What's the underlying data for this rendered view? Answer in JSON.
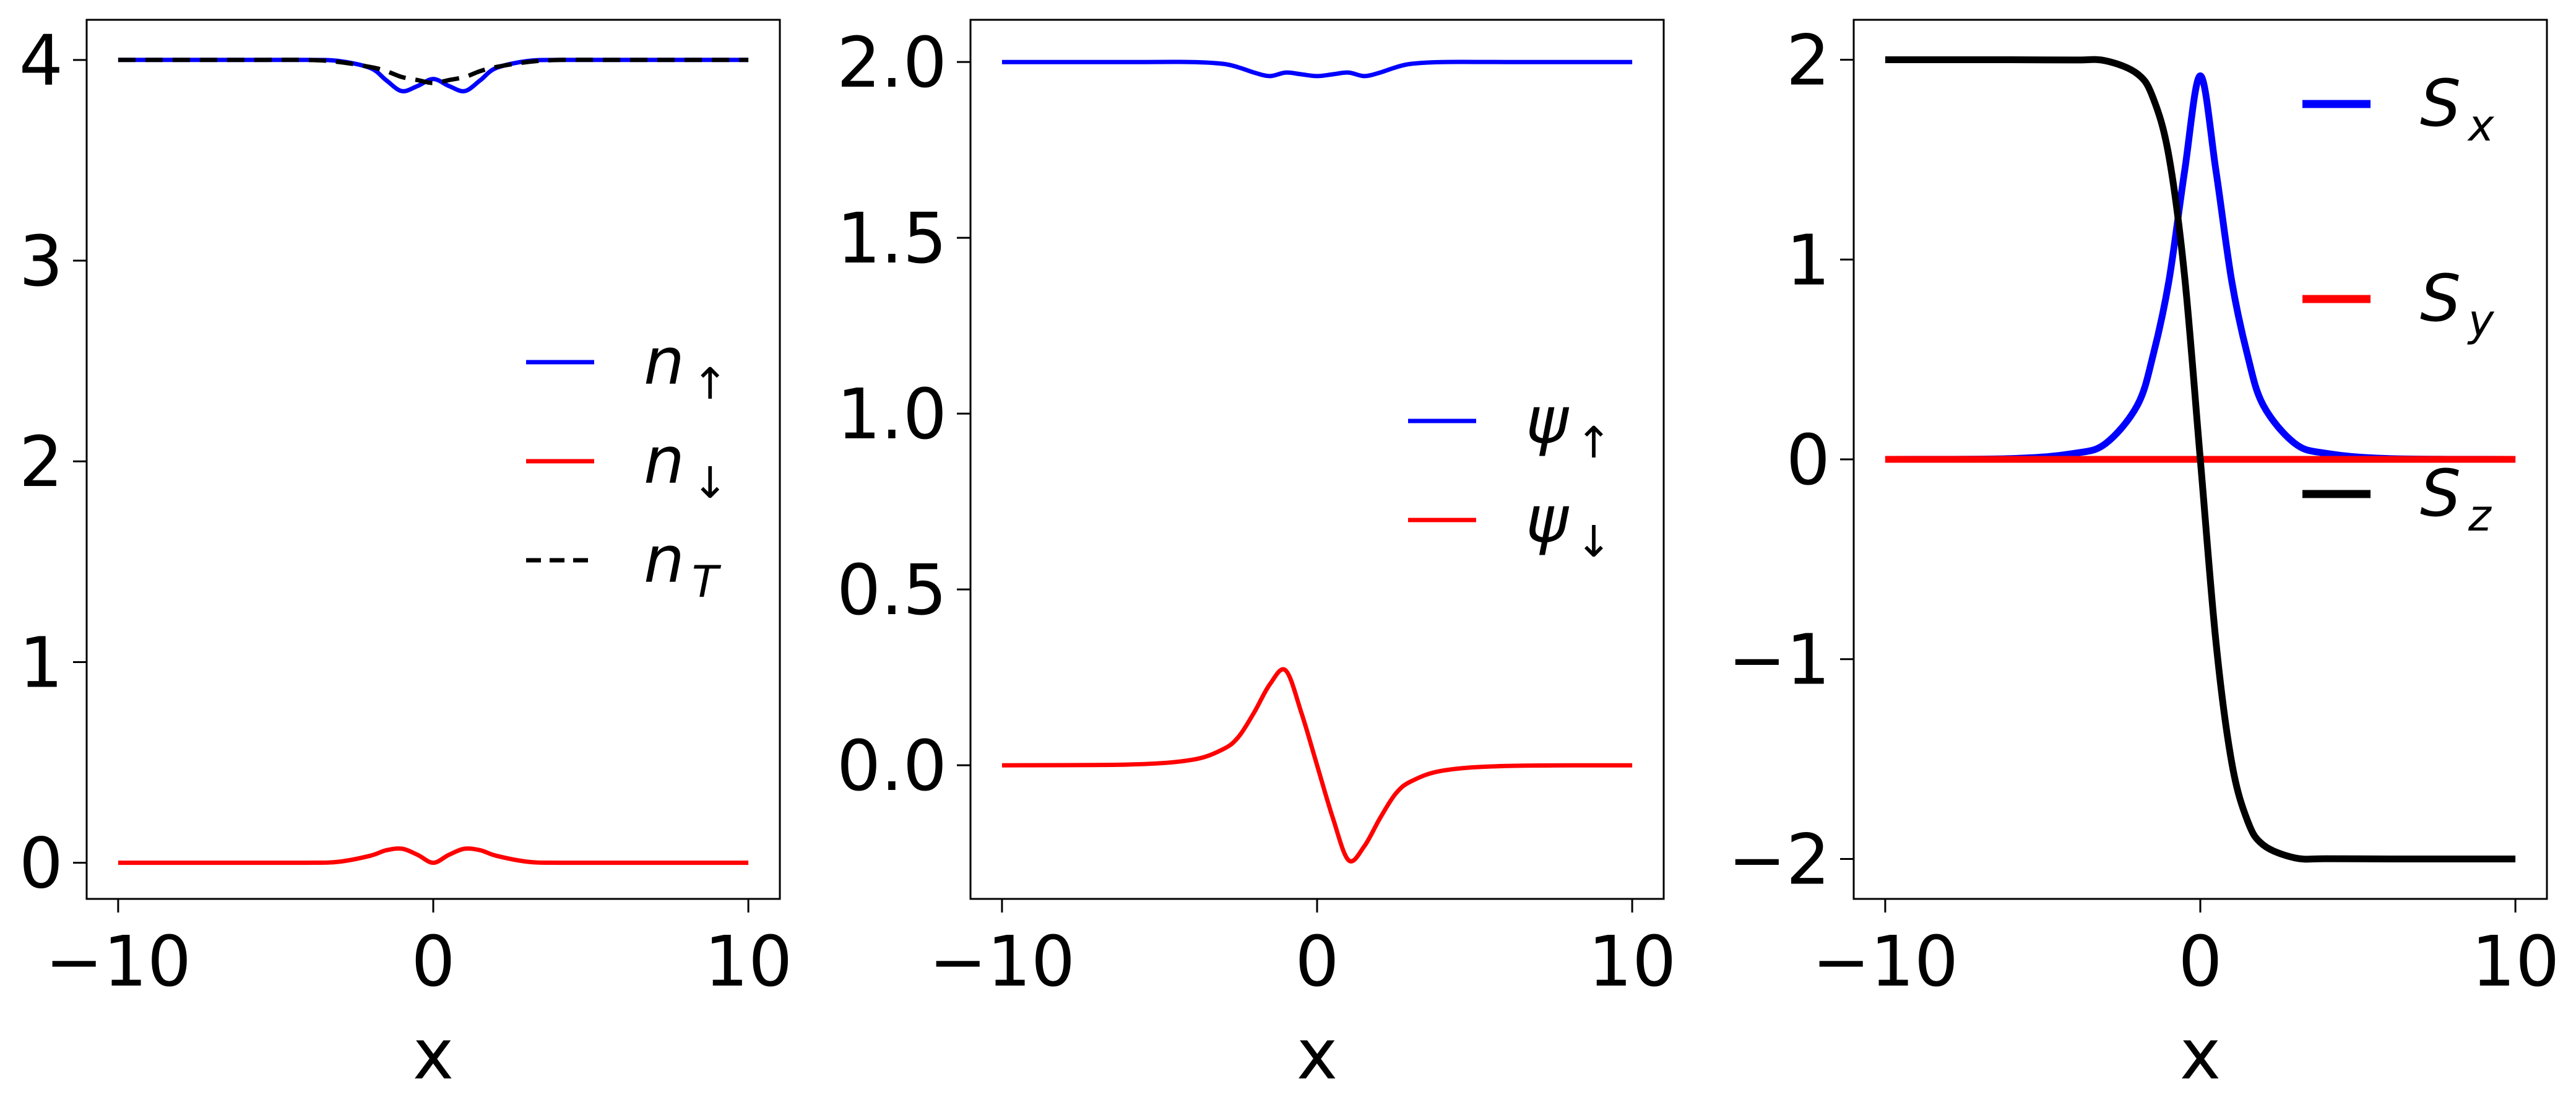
{
  "chart_data": [
    {
      "type": "line",
      "title": "",
      "xlabel": "x",
      "ylabel": "",
      "xlim": [
        -11,
        11
      ],
      "ylim": [
        -0.18,
        4.2
      ],
      "xticks": [
        -10,
        0,
        10
      ],
      "yticks": [
        0,
        1,
        2,
        3,
        4
      ],
      "xtick_labels": [
        "−10",
        "0",
        "10"
      ],
      "ytick_labels": [
        "0",
        "1",
        "2",
        "3",
        "4"
      ],
      "grid": false,
      "legend_position": "center-right",
      "x": [
        -10,
        -8,
        -6,
        -4,
        -3,
        -2,
        -1.5,
        -1,
        -0.5,
        0,
        0.5,
        1,
        1.5,
        2,
        3,
        4,
        6,
        8,
        10
      ],
      "series": [
        {
          "name": "n↑",
          "base": "n",
          "sub": "↑",
          "color": "#0000ff",
          "dash": "",
          "values": [
            4.0,
            4.0,
            4.0,
            4.0,
            3.995,
            3.96,
            3.9,
            3.845,
            3.87,
            3.905,
            3.87,
            3.845,
            3.9,
            3.96,
            3.995,
            4.0,
            4.0,
            4.0,
            4.0
          ]
        },
        {
          "name": "n↓",
          "base": "n",
          "sub": "↓",
          "color": "#ff0000",
          "dash": "",
          "values": [
            0.0,
            0.0,
            0.0,
            0.0,
            0.005,
            0.035,
            0.062,
            0.07,
            0.04,
            0.0,
            0.04,
            0.07,
            0.062,
            0.035,
            0.005,
            0.0,
            0.0,
            0.0,
            0.0
          ]
        },
        {
          "name": "nT",
          "base": "n",
          "sub": "T",
          "color": "#000000",
          "dash": "28,16",
          "values": [
            4.0,
            4.0,
            4.0,
            4.0,
            3.99,
            3.965,
            3.945,
            3.915,
            3.9,
            3.885,
            3.9,
            3.915,
            3.945,
            3.965,
            3.99,
            4.0,
            4.0,
            4.0,
            4.0
          ]
        }
      ]
    },
    {
      "type": "line",
      "title": "",
      "xlabel": "x",
      "ylabel": "",
      "xlim": [
        -11,
        11
      ],
      "ylim": [
        -0.38,
        2.12
      ],
      "xticks": [
        -10,
        0,
        10
      ],
      "yticks": [
        0.0,
        0.5,
        1.0,
        1.5,
        2.0
      ],
      "xtick_labels": [
        "−10",
        "0",
        "10"
      ],
      "ytick_labels": [
        "0.0",
        "0.5",
        "1.0",
        "1.5",
        "2.0"
      ],
      "grid": false,
      "legend_position": "center-right",
      "x": [
        -10,
        -6,
        -4,
        -3,
        -2.5,
        -2,
        -1.5,
        -1,
        -0.5,
        0,
        0.5,
        1,
        1.5,
        2,
        2.5,
        3,
        4,
        6,
        10
      ],
      "series": [
        {
          "name": "ψ↑",
          "base": "ψ",
          "sub": "↑",
          "color": "#0000ff",
          "dash": "",
          "values": [
            2.0,
            2.0,
            2.0,
            1.995,
            1.985,
            1.97,
            1.96,
            1.97,
            1.965,
            1.96,
            1.965,
            1.97,
            1.96,
            1.97,
            1.985,
            1.995,
            2.0,
            2.0,
            2.0
          ]
        },
        {
          "name": "ψ↓",
          "base": "ψ",
          "sub": "↓",
          "color": "#ff0000",
          "dash": "",
          "values": [
            0.0,
            0.002,
            0.015,
            0.045,
            0.08,
            0.15,
            0.23,
            0.27,
            0.15,
            0.0,
            -0.15,
            -0.27,
            -0.23,
            -0.15,
            -0.08,
            -0.045,
            -0.015,
            -0.002,
            0.0
          ]
        }
      ]
    },
    {
      "type": "line",
      "title": "",
      "xlabel": "x",
      "ylabel": "",
      "xlim": [
        -11,
        11
      ],
      "ylim": [
        -2.2,
        2.2
      ],
      "xticks": [
        -10,
        0,
        10
      ],
      "yticks": [
        -2,
        -1,
        0,
        1,
        2
      ],
      "xtick_labels": [
        "−10",
        "0",
        "10"
      ],
      "ytick_labels": [
        "−2",
        "−1",
        "0",
        "1",
        "2"
      ],
      "grid": false,
      "legend_position": "upper-right",
      "x": [
        -10,
        -6,
        -4,
        -3,
        -2,
        -1.5,
        -1,
        -0.5,
        0,
        0.5,
        1,
        1.5,
        2,
        3,
        4,
        6,
        10
      ],
      "series": [
        {
          "name": "Sx",
          "base": "S",
          "sub": "x",
          "color": "#0000ff",
          "dash": "",
          "values": [
            0.0,
            0.004,
            0.03,
            0.08,
            0.27,
            0.52,
            0.89,
            1.44,
            1.92,
            1.44,
            0.89,
            0.52,
            0.27,
            0.08,
            0.03,
            0.004,
            0.0
          ]
        },
        {
          "name": "Sy",
          "base": "S",
          "sub": "y",
          "color": "#ff0000",
          "dash": "",
          "values": [
            0,
            0,
            0,
            0,
            0,
            0,
            0,
            0,
            0,
            0,
            0,
            0,
            0,
            0,
            0,
            0,
            0
          ]
        },
        {
          "name": "Sz",
          "base": "S",
          "sub": "z",
          "color": "#000000",
          "dash": "",
          "values": [
            2.0,
            2.0,
            1.999,
            1.995,
            1.93,
            1.81,
            1.52,
            0.92,
            0.0,
            -0.92,
            -1.52,
            -1.81,
            -1.93,
            -1.995,
            -1.999,
            -2.0,
            -2.0
          ]
        }
      ]
    }
  ]
}
